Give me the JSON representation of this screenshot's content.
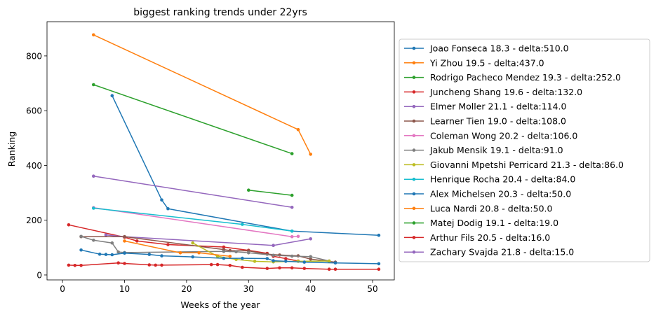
{
  "chart_data": {
    "type": "line",
    "title": "biggest ranking trends under 22yrs",
    "xlabel": "Weeks of the year",
    "ylabel": "Ranking",
    "xlim": [
      -2.5,
      53.5
    ],
    "ylim": [
      -18,
      925
    ],
    "xticks": [
      0,
      10,
      20,
      30,
      40,
      50
    ],
    "yticks": [
      0,
      200,
      400,
      600,
      800
    ],
    "grid": false,
    "legend_position": "right, outside plot",
    "series": [
      {
        "name": "Joao Fonseca 18.3 - delta:510.0",
        "color": "#1f77b4",
        "x": [
          8,
          16,
          17,
          37,
          51
        ],
        "y": [
          655,
          274,
          242,
          160,
          145
        ]
      },
      {
        "name": "Yi Zhou 19.5 - delta:437.0",
        "color": "#ff7f0e",
        "x": [
          5,
          38,
          40
        ],
        "y": [
          877,
          531,
          441
        ]
      },
      {
        "name": "Rodrigo Pacheco Mendez 19.3 - delta:252.0",
        "color": "#2ca02c",
        "x": [
          5,
          37
        ],
        "y": [
          695,
          443
        ]
      },
      {
        "name": "Juncheng Shang 19.6 - delta:132.0",
        "color": "#d62728",
        "x": [
          1,
          10,
          12,
          17,
          26,
          30,
          33,
          34,
          36,
          38
        ],
        "y": [
          183,
          138,
          124,
          111,
          102,
          90,
          79,
          68,
          60,
          51
        ]
      },
      {
        "name": "Elmer Moller 21.1 - delta:114.0",
        "color": "#9467bd",
        "x": [
          7,
          10,
          34,
          40
        ],
        "y": [
          146,
          140,
          108,
          132
        ]
      },
      {
        "name": "Learner Tien 19.0 - delta:108.0",
        "color": "#8c564b",
        "x": [
          3,
          10,
          26,
          27,
          30,
          33,
          35,
          38,
          40,
          44
        ],
        "y": [
          140,
          140,
          93,
          89,
          88,
          76,
          73,
          70,
          58,
          47
        ]
      },
      {
        "name": "Coleman Wong 20.2 - delta:106.0",
        "color": "#e377c2",
        "x": [
          5,
          37,
          38
        ],
        "y": [
          246,
          140,
          141
        ]
      },
      {
        "name": "Jakub Mensik 19.1 - delta:91.0",
        "color": "#7f7f7f",
        "x": [
          3,
          5,
          8,
          9,
          10,
          26,
          28,
          30,
          34,
          37,
          40,
          43
        ],
        "y": [
          141,
          127,
          117,
          84,
          82,
          86,
          85,
          81,
          72,
          69,
          67,
          51
        ]
      },
      {
        "name": "Giovanni Mpetshi Perricard 21.3 - delta:86.0",
        "color": "#bcbd22",
        "x": [
          21,
          25,
          28,
          31,
          34,
          38,
          43
        ],
        "y": [
          117,
          68,
          57,
          50,
          48,
          50,
          51
        ]
      },
      {
        "name": "Henrique Rocha 20.4 - delta:84.0",
        "color": "#17becf",
        "x": [
          5,
          29,
          37
        ],
        "y": [
          244,
          185,
          160
        ]
      },
      {
        "name": "Alex Michelsen 20.3 - delta:50.0",
        "color": "#1f77b4",
        "x": [
          3,
          6,
          7,
          8,
          10,
          14,
          16,
          21,
          26,
          29,
          33,
          34,
          36,
          39,
          44,
          51
        ],
        "y": [
          91,
          76,
          75,
          74,
          80,
          75,
          70,
          66,
          61,
          61,
          60,
          52,
          50,
          47,
          44,
          41
        ]
      },
      {
        "name": "Luca Nardi 20.8 - delta:50.0",
        "color": "#ff7f0e",
        "x": [
          10,
          19,
          22,
          27
        ],
        "y": [
          124,
          81,
          81,
          68
        ]
      },
      {
        "name": "Matej Dodig 19.1 - delta:19.0",
        "color": "#2ca02c",
        "x": [
          30,
          37
        ],
        "y": [
          310,
          291
        ]
      },
      {
        "name": "Arthur Fils 20.5 - delta:16.0",
        "color": "#d62728",
        "x": [
          1,
          2,
          3,
          9,
          10,
          14,
          15,
          16,
          24,
          25,
          27,
          29,
          33,
          35,
          37,
          39,
          43,
          44,
          51
        ],
        "y": [
          36,
          35,
          35,
          44,
          42,
          37,
          36,
          36,
          38,
          38,
          35,
          28,
          24,
          26,
          26,
          24,
          21,
          21,
          21
        ]
      },
      {
        "name": "Zachary Svajda 21.8 - delta:15.0",
        "color": "#9467bd",
        "x": [
          5,
          37
        ],
        "y": [
          361,
          247
        ]
      }
    ]
  }
}
